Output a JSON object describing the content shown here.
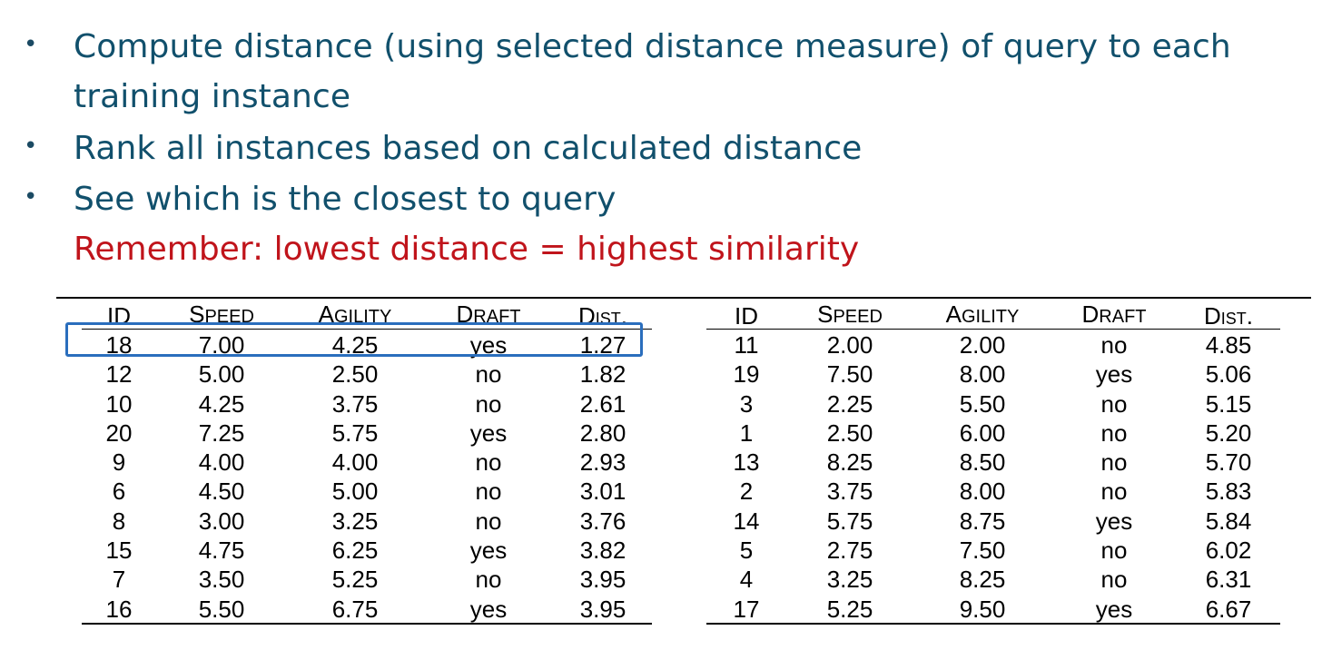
{
  "bullets": [
    {
      "text": "Compute distance (using selected distance measure) of query to each training instance"
    },
    {
      "text": "Rank all instances based on calculated distance"
    },
    {
      "text": "See which is the closest to query"
    }
  ],
  "remember_text": "Remember: lowest distance = highest similarity",
  "columns": {
    "id": "ID",
    "speed_first": "S",
    "speed_rest": "PEED",
    "agility_first": "A",
    "agility_rest": "GILITY",
    "draft_first": "D",
    "draft_rest": "RAFT",
    "dist": "Dist."
  },
  "highlight_color": "#2a6ebd",
  "left_table": [
    {
      "id": "18",
      "speed": "7.00",
      "agility": "4.25",
      "draft": "yes",
      "dist": "1.27"
    },
    {
      "id": "12",
      "speed": "5.00",
      "agility": "2.50",
      "draft": "no",
      "dist": "1.82"
    },
    {
      "id": "10",
      "speed": "4.25",
      "agility": "3.75",
      "draft": "no",
      "dist": "2.61"
    },
    {
      "id": "20",
      "speed": "7.25",
      "agility": "5.75",
      "draft": "yes",
      "dist": "2.80"
    },
    {
      "id": "9",
      "speed": "4.00",
      "agility": "4.00",
      "draft": "no",
      "dist": "2.93"
    },
    {
      "id": "6",
      "speed": "4.50",
      "agility": "5.00",
      "draft": "no",
      "dist": "3.01"
    },
    {
      "id": "8",
      "speed": "3.00",
      "agility": "3.25",
      "draft": "no",
      "dist": "3.76"
    },
    {
      "id": "15",
      "speed": "4.75",
      "agility": "6.25",
      "draft": "yes",
      "dist": "3.82"
    },
    {
      "id": "7",
      "speed": "3.50",
      "agility": "5.25",
      "draft": "no",
      "dist": "3.95"
    },
    {
      "id": "16",
      "speed": "5.50",
      "agility": "6.75",
      "draft": "yes",
      "dist": "3.95"
    }
  ],
  "right_table": [
    {
      "id": "11",
      "speed": "2.00",
      "agility": "2.00",
      "draft": "no",
      "dist": "4.85"
    },
    {
      "id": "19",
      "speed": "7.50",
      "agility": "8.00",
      "draft": "yes",
      "dist": "5.06"
    },
    {
      "id": "3",
      "speed": "2.25",
      "agility": "5.50",
      "draft": "no",
      "dist": "5.15"
    },
    {
      "id": "1",
      "speed": "2.50",
      "agility": "6.00",
      "draft": "no",
      "dist": "5.20"
    },
    {
      "id": "13",
      "speed": "8.25",
      "agility": "8.50",
      "draft": "no",
      "dist": "5.70"
    },
    {
      "id": "2",
      "speed": "3.75",
      "agility": "8.00",
      "draft": "no",
      "dist": "5.83"
    },
    {
      "id": "14",
      "speed": "5.75",
      "agility": "8.75",
      "draft": "yes",
      "dist": "5.84"
    },
    {
      "id": "5",
      "speed": "2.75",
      "agility": "7.50",
      "draft": "no",
      "dist": "6.02"
    },
    {
      "id": "4",
      "speed": "3.25",
      "agility": "8.25",
      "draft": "no",
      "dist": "6.31"
    },
    {
      "id": "17",
      "speed": "5.25",
      "agility": "9.50",
      "draft": "yes",
      "dist": "6.67"
    }
  ]
}
